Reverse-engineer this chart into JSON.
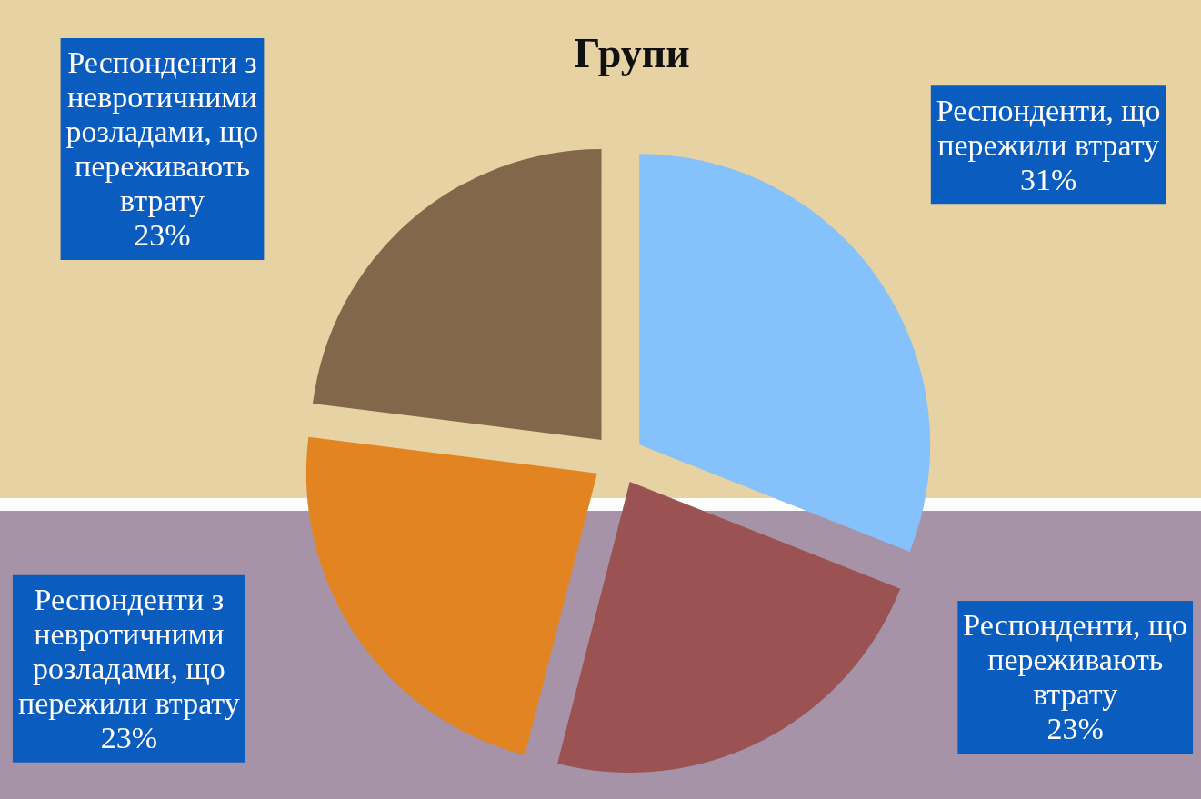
{
  "chart_data": {
    "type": "pie",
    "title": "Групи",
    "categories": [
      "Респонденти, що пережили втрату",
      "Респонденти, що переживають втрату",
      "Респонденти з невротичними розладами, що пережили втрату",
      "Респонденти з невротичними розладами, що переживають втрату"
    ],
    "values": [
      31,
      23,
      23,
      23
    ],
    "value_labels": [
      "31%",
      "23%",
      "23%",
      "23%"
    ],
    "colors": [
      "#85c1fa",
      "#9b5252",
      "#e38422",
      "#82674a"
    ],
    "legend": false
  }
}
